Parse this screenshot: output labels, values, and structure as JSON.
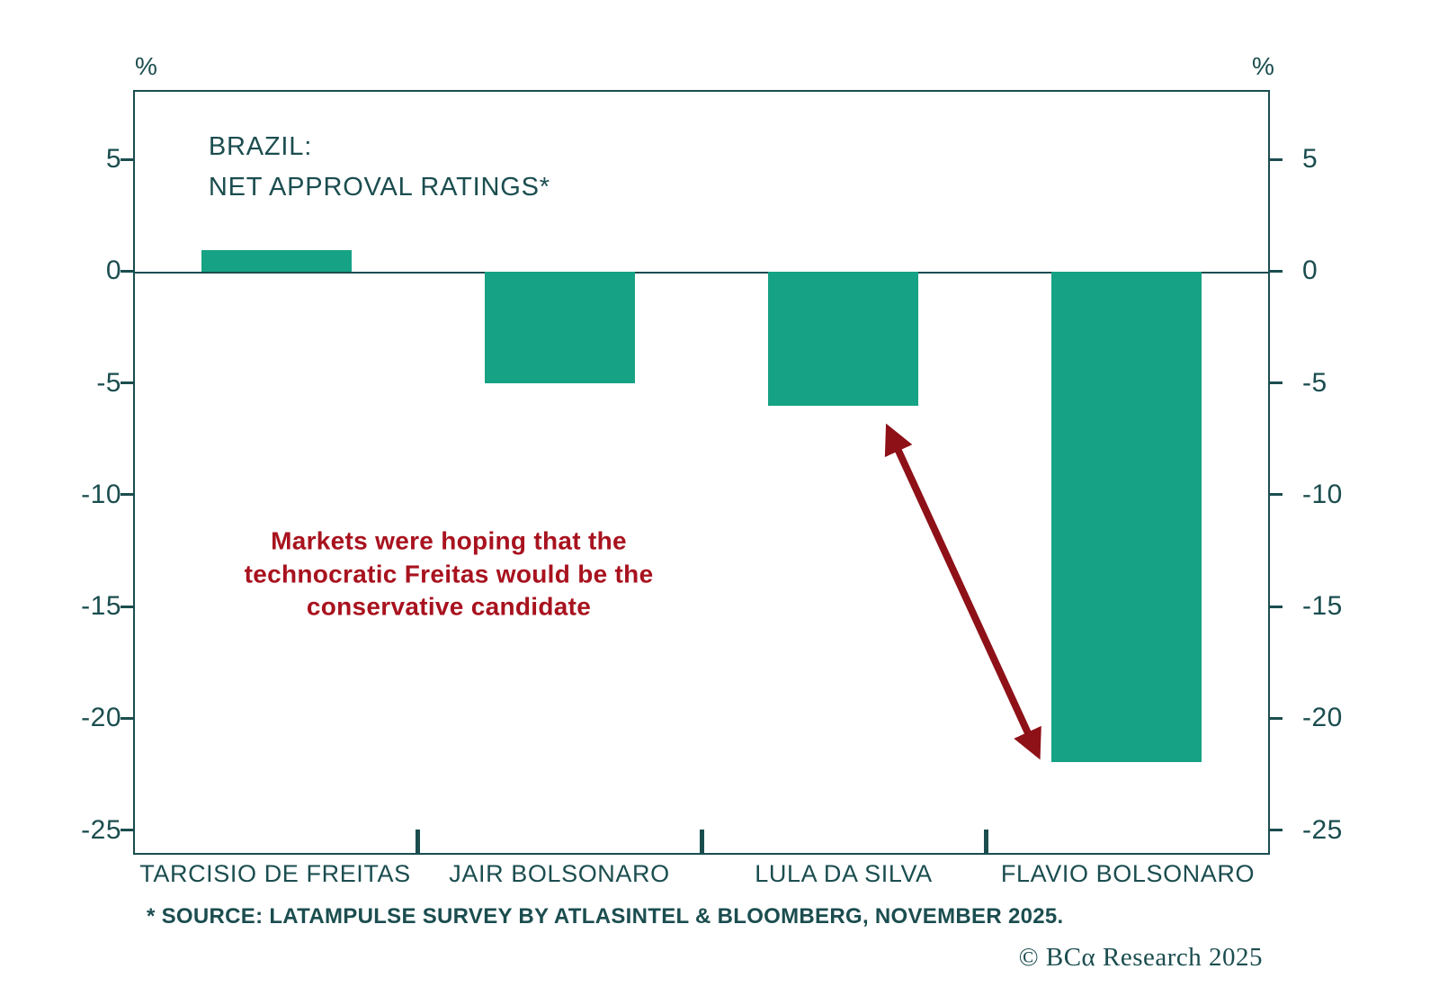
{
  "colors": {
    "bar": "#16A285",
    "axis": "#1B4D4F",
    "annotation_text": "#A8121E",
    "arrow": "#8E1118"
  },
  "chart_data": {
    "type": "bar",
    "title_lines": [
      "BRAZIL:",
      "NET APPROVAL RATINGS*"
    ],
    "unit": "%",
    "categories": [
      "TARCISIO DE FREITAS",
      "JAIR BOLSONARO",
      "LULA DA SILVA",
      "FLAVIO BOLSONARO"
    ],
    "values": [
      1,
      -5,
      -6,
      -22
    ],
    "ylim": [
      -26.1,
      8.1
    ],
    "yticks": [
      5,
      0,
      -5,
      -10,
      -15,
      -20,
      -25
    ],
    "grid": false,
    "zero_line": true,
    "bar_width_frac": 0.133,
    "annotation": {
      "lines": [
        "Markets were hoping that the",
        "technocratic Freitas would be the",
        "conservative candidate"
      ],
      "arrow": {
        "x1_frac": 0.664,
        "y1_value": -7.1,
        "x2_frac": 0.793,
        "y2_value": -21.4
      }
    }
  },
  "footer": {
    "source_note": "* SOURCE: LATAMPULSE SURVEY BY ATLASINTEL & BLOOMBERG, NOVEMBER 2025.",
    "copyright": "© BCα Research 2025"
  }
}
